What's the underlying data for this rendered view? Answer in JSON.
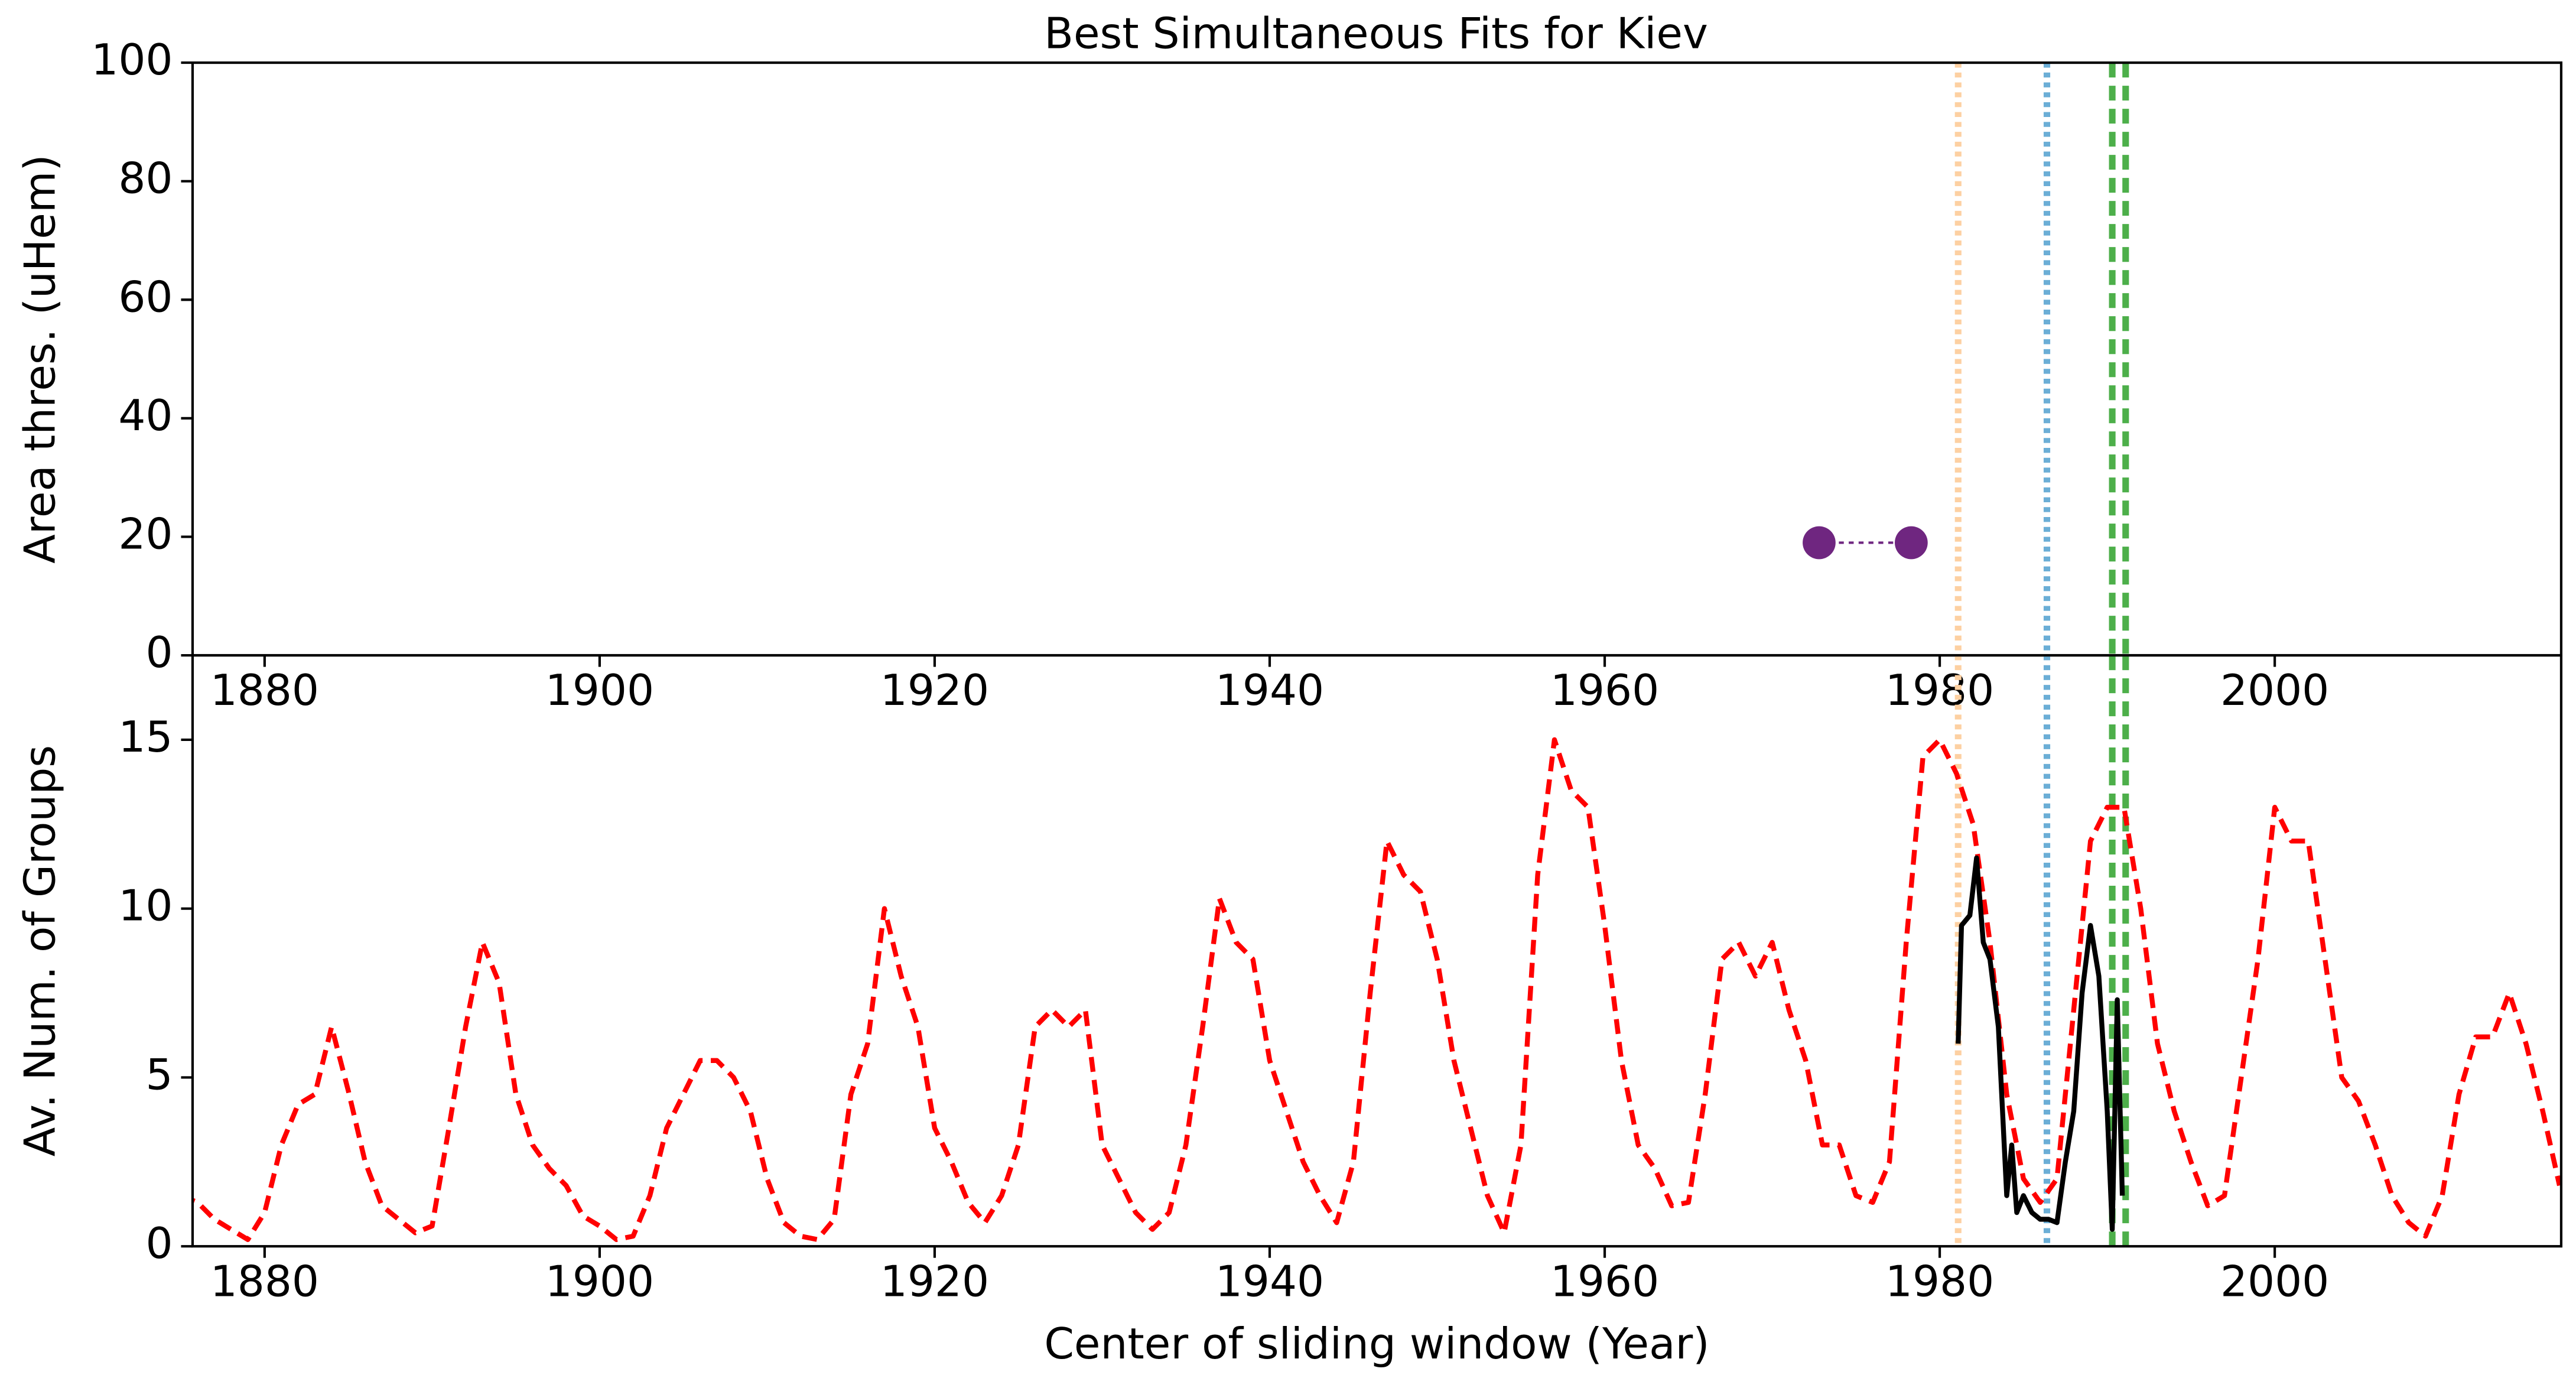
{
  "chart_data": [
    {
      "type": "scatter",
      "title": "Best Simultaneous Fits for Kiev",
      "ylabel": "Area thres. (uHem)",
      "xlim": [
        1875.7,
        2017.1
      ],
      "xticks": [
        1880,
        1900,
        1920,
        1940,
        1960,
        1980,
        2000
      ],
      "ylim": [
        0,
        100
      ],
      "yticks": [
        0,
        20,
        40,
        60,
        80,
        100
      ],
      "series": [
        {
          "color": "#6f2680",
          "line_style": "dotted",
          "x": [
            1972.8,
            1978.3
          ],
          "values": [
            19,
            19
          ]
        }
      ],
      "vlines": [
        {
          "x": 1981.1,
          "color": "#fdd0a2",
          "style": "dotted"
        },
        {
          "x": 1986.4,
          "color": "#6baed6",
          "style": "dotted"
        },
        {
          "x": 1990.3,
          "color": "#4daf4a",
          "style": "dashed"
        },
        {
          "x": 1991.1,
          "color": "#4daf4a",
          "style": "dashed"
        }
      ]
    },
    {
      "type": "line",
      "ylabel": "Av. Num. of Groups",
      "xlabel": "Center of sliding window (Year)",
      "xlim": [
        1875.7,
        2017.1
      ],
      "xticks": [
        1880,
        1900,
        1920,
        1940,
        1960,
        1980,
        2000
      ],
      "ylim": [
        0,
        17.5
      ],
      "yticks": [
        0,
        5,
        10,
        15
      ],
      "series": [
        {
          "color": "#ff0000",
          "line_style": "dashed",
          "x": [
            1875,
            1876,
            1877,
            1878,
            1879,
            1880,
            1881,
            1882,
            1883,
            1884,
            1885,
            1886,
            1887,
            1888,
            1889,
            1890,
            1891,
            1892,
            1893,
            1894,
            1895,
            1896,
            1897,
            1898,
            1899,
            1900,
            1901,
            1902,
            1903,
            1904,
            1905,
            1906,
            1907,
            1908,
            1909,
            1910,
            1911,
            1912,
            1913,
            1914,
            1915,
            1916,
            1917,
            1918,
            1919,
            1920,
            1921,
            1922,
            1923,
            1924,
            1925,
            1926,
            1927,
            1928,
            1929,
            1930,
            1931,
            1932,
            1933,
            1934,
            1935,
            1936,
            1937,
            1938,
            1939,
            1940,
            1941,
            1942,
            1943,
            1944,
            1945,
            1946,
            1947,
            1948,
            1949,
            1950,
            1951,
            1952,
            1953,
            1954,
            1955,
            1956,
            1957,
            1958,
            1959,
            1960,
            1961,
            1962,
            1963,
            1964,
            1965,
            1966,
            1967,
            1968,
            1969,
            1970,
            1971,
            1972,
            1973,
            1974,
            1975,
            1976,
            1977,
            1978,
            1979,
            1980,
            1981,
            1982,
            1983,
            1984,
            1985,
            1986,
            1987,
            1988,
            1989,
            1990,
            1991,
            1992,
            1993,
            1994,
            1995,
            1996,
            1997,
            1998,
            1999,
            2000,
            2001,
            2002,
            2003,
            2004,
            2005,
            2006,
            2007,
            2008,
            2009,
            2010,
            2011,
            2012,
            2013,
            2014,
            2015,
            2016,
            2017
          ],
          "values": [
            1.5,
            1.3,
            0.8,
            0.5,
            0.2,
            1.0,
            3.0,
            4.2,
            4.5,
            6.5,
            4.6,
            2.5,
            1.2,
            0.8,
            0.4,
            0.6,
            3.5,
            6.5,
            9.0,
            7.8,
            4.5,
            3.0,
            2.3,
            1.8,
            0.9,
            0.6,
            0.2,
            0.3,
            1.5,
            3.5,
            4.5,
            5.5,
            5.5,
            5.0,
            4.0,
            2.0,
            0.7,
            0.3,
            0.2,
            0.8,
            4.5,
            6.0,
            10.0,
            8.0,
            6.5,
            3.5,
            2.5,
            1.3,
            0.7,
            1.5,
            3.0,
            6.5,
            7.0,
            6.5,
            7.0,
            3.0,
            2.0,
            1.0,
            0.5,
            1.0,
            3.0,
            6.5,
            10.3,
            9.0,
            8.5,
            5.5,
            4.0,
            2.5,
            1.5,
            0.7,
            2.5,
            7.5,
            12.0,
            11.0,
            10.5,
            8.5,
            5.5,
            3.5,
            1.5,
            0.4,
            3.0,
            11.0,
            15.0,
            13.5,
            13.0,
            9.5,
            5.5,
            3.0,
            2.3,
            1.2,
            1.3,
            4.5,
            8.5,
            9.0,
            8.0,
            9.0,
            7.0,
            5.5,
            3.0,
            3.0,
            1.5,
            1.3,
            2.5,
            9.0,
            14.5,
            15.0,
            14.0,
            12.5,
            9.0,
            4.5,
            2.0,
            1.3,
            2.0,
            7.0,
            12.0,
            13.0,
            13.0,
            10.0,
            6.0,
            4.0,
            2.5,
            1.2,
            1.5,
            5.0,
            8.5,
            13.0,
            12.0,
            12.0,
            8.5,
            5.0,
            4.3,
            3.0,
            1.5,
            0.7,
            0.3,
            1.5,
            4.5,
            6.2,
            6.2,
            7.5,
            6.0,
            4.0,
            1.8
          ]
        },
        {
          "color": "#000000",
          "line_style": "solid",
          "x": [
            1981.1,
            1981.3,
            1981.8,
            1982.2,
            1982.6,
            1983,
            1983.5,
            1984,
            1984.3,
            1984.6,
            1985,
            1985.5,
            1986,
            1986.5,
            1987,
            1987.5,
            1988,
            1988.5,
            1989,
            1989.5,
            1990,
            1990.3,
            1990.6,
            1990.9
          ],
          "values": [
            6,
            9.5,
            9.8,
            11.5,
            9,
            8.5,
            6.5,
            1.5,
            3,
            1.0,
            1.5,
            1.0,
            0.8,
            0.8,
            0.7,
            2.5,
            4,
            7.5,
            9.5,
            8,
            4,
            0.5,
            7.3,
            1.5
          ]
        }
      ],
      "vlines": [
        {
          "x": 1981.1,
          "color": "#fdd0a2",
          "style": "dotted"
        },
        {
          "x": 1986.4,
          "color": "#6baed6",
          "style": "dotted"
        },
        {
          "x": 1990.3,
          "color": "#4daf4a",
          "style": "dashed"
        },
        {
          "x": 1991.1,
          "color": "#4daf4a",
          "style": "dashed"
        }
      ]
    }
  ]
}
